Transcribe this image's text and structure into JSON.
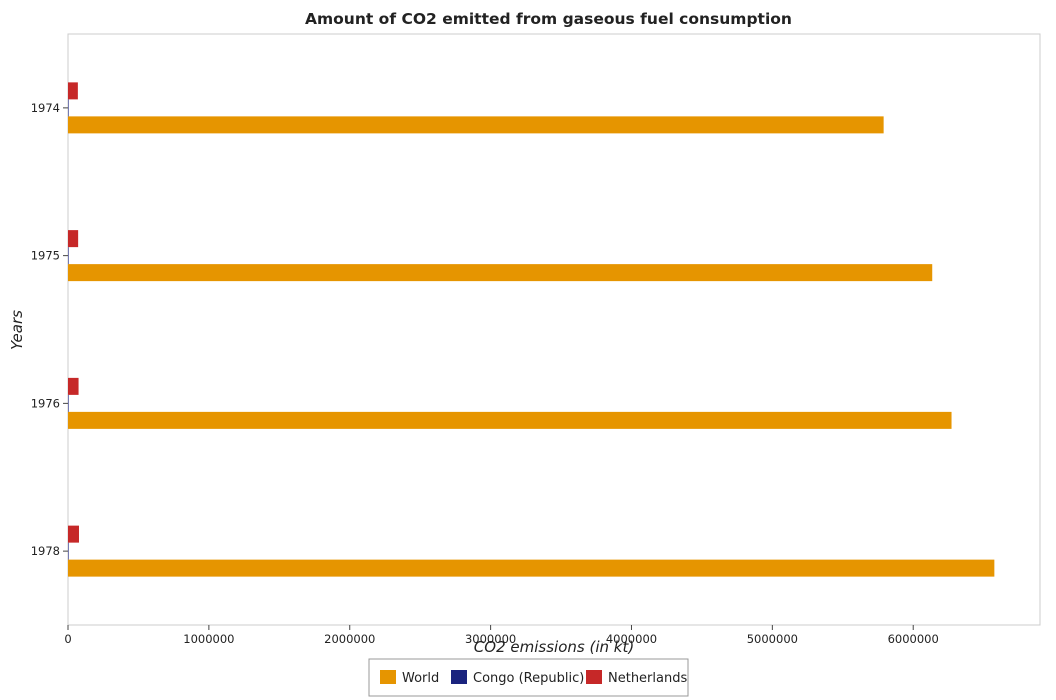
{
  "chart_data": {
    "type": "bar",
    "orientation": "horizontal",
    "title": "Amount of CO2 emitted from gaseous fuel consumption",
    "xlabel": "CO2 emissions (in kt)",
    "ylabel": "Years",
    "categories": [
      "1974",
      "1975",
      "1976",
      "1978"
    ],
    "xlim": [
      0,
      6900000
    ],
    "xticks": [
      0,
      1000000,
      2000000,
      3000000,
      4000000,
      5000000,
      6000000
    ],
    "xtick_labels": [
      "0",
      "1000000",
      "2000000",
      "3000000",
      "4000000",
      "5000000",
      "6000000"
    ],
    "legend_position": "bottom-center",
    "grid": false,
    "series": [
      {
        "name": "World",
        "color": "#e69500",
        "values": [
          5790000,
          6135000,
          6272000,
          6576000
        ]
      },
      {
        "name": "Congo (Republic)",
        "color": "#1a237e",
        "values": [
          200,
          200,
          200,
          200
        ]
      },
      {
        "name": "Netherlands",
        "color": "#c62828",
        "values": [
          70000,
          72000,
          75000,
          78000
        ]
      }
    ]
  }
}
